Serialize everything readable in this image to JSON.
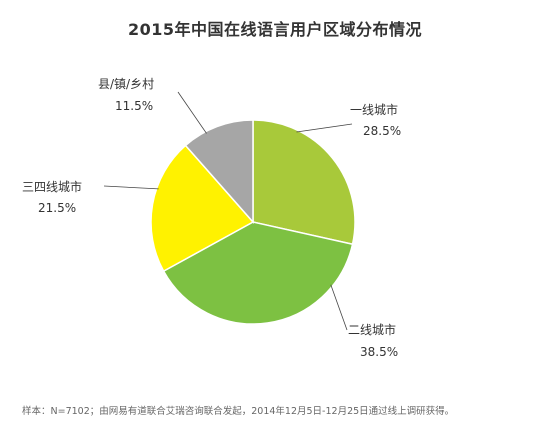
{
  "chart_data": {
    "type": "pie",
    "title": "2015年中国在线语言用户区域分布情况",
    "categories": [
      "一线城市",
      "二线城市",
      "三四线城市",
      "县/镇/乡村"
    ],
    "values": [
      28.5,
      38.5,
      21.5,
      11.5
    ],
    "value_labels": [
      "28.5%",
      "38.5%",
      "21.5%",
      "11.5%"
    ],
    "unit": "%",
    "colors": [
      "#a8c93a",
      "#7dc142",
      "#fff200",
      "#a6a6a6"
    ],
    "legend": "none",
    "start_angle_deg": 0,
    "direction": "clockwise"
  },
  "footnote": "样本：N=7102；由网易有道联合艾瑞咨询联合发起，2014年12月5日-12月25日通过线上调研获得。"
}
